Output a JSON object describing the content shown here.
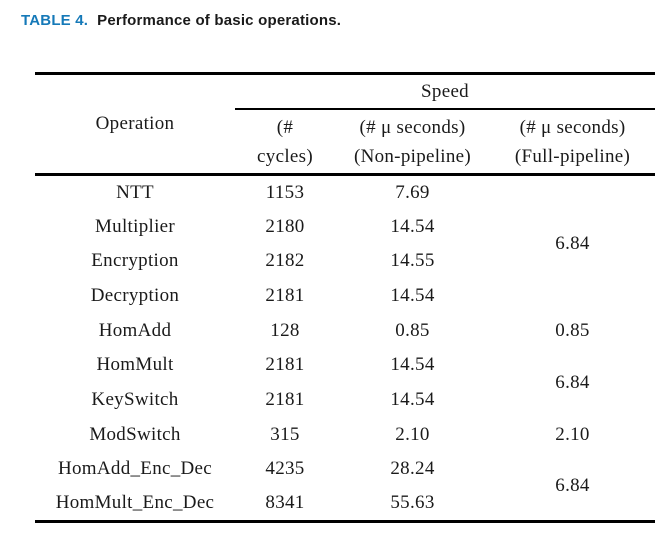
{
  "caption": {
    "label": "TABLE 4.",
    "text": "Performance of basic operations."
  },
  "colors": {
    "caption_accent": "#1579B8",
    "text_color": "#1A1A1A",
    "rule_color": "#000000"
  },
  "table": {
    "operation_header": "Operation",
    "col_group_header": "Speed",
    "speed_columns": [
      {
        "line1": "(#",
        "line2": "cycles)"
      },
      {
        "line1": "(# μ seconds)",
        "line2": "(Non-pipeline)"
      },
      {
        "line1": "(# μ seconds)",
        "line2": "(Full-pipeline)"
      }
    ],
    "rows": [
      {
        "op": "NTT",
        "cycles": "1153",
        "non_pipeline": "7.69",
        "full_pipeline": ""
      },
      {
        "op": "Multiplier",
        "cycles": "2180",
        "non_pipeline": "14.54",
        "full_pipeline": "6.84"
      },
      {
        "op": "Encryption",
        "cycles": "2182",
        "non_pipeline": "14.55"
      },
      {
        "op": "Decryption",
        "cycles": "2181",
        "non_pipeline": "14.54",
        "full_pipeline": ""
      },
      {
        "op": "HomAdd",
        "cycles": "128",
        "non_pipeline": "0.85",
        "full_pipeline": "0.85"
      },
      {
        "op": "HomMult",
        "cycles": "2181",
        "non_pipeline": "14.54",
        "full_pipeline": "6.84"
      },
      {
        "op": "KeySwitch",
        "cycles": "2181",
        "non_pipeline": "14.54"
      },
      {
        "op": "ModSwitch",
        "cycles": "315",
        "non_pipeline": "2.10",
        "full_pipeline": "2.10"
      },
      {
        "op": "HomAdd_Enc_Dec",
        "cycles": "4235",
        "non_pipeline": "28.24",
        "full_pipeline": "6.84"
      },
      {
        "op": "HomMult_Enc_Dec",
        "cycles": "8341",
        "non_pipeline": "55.63"
      }
    ]
  }
}
